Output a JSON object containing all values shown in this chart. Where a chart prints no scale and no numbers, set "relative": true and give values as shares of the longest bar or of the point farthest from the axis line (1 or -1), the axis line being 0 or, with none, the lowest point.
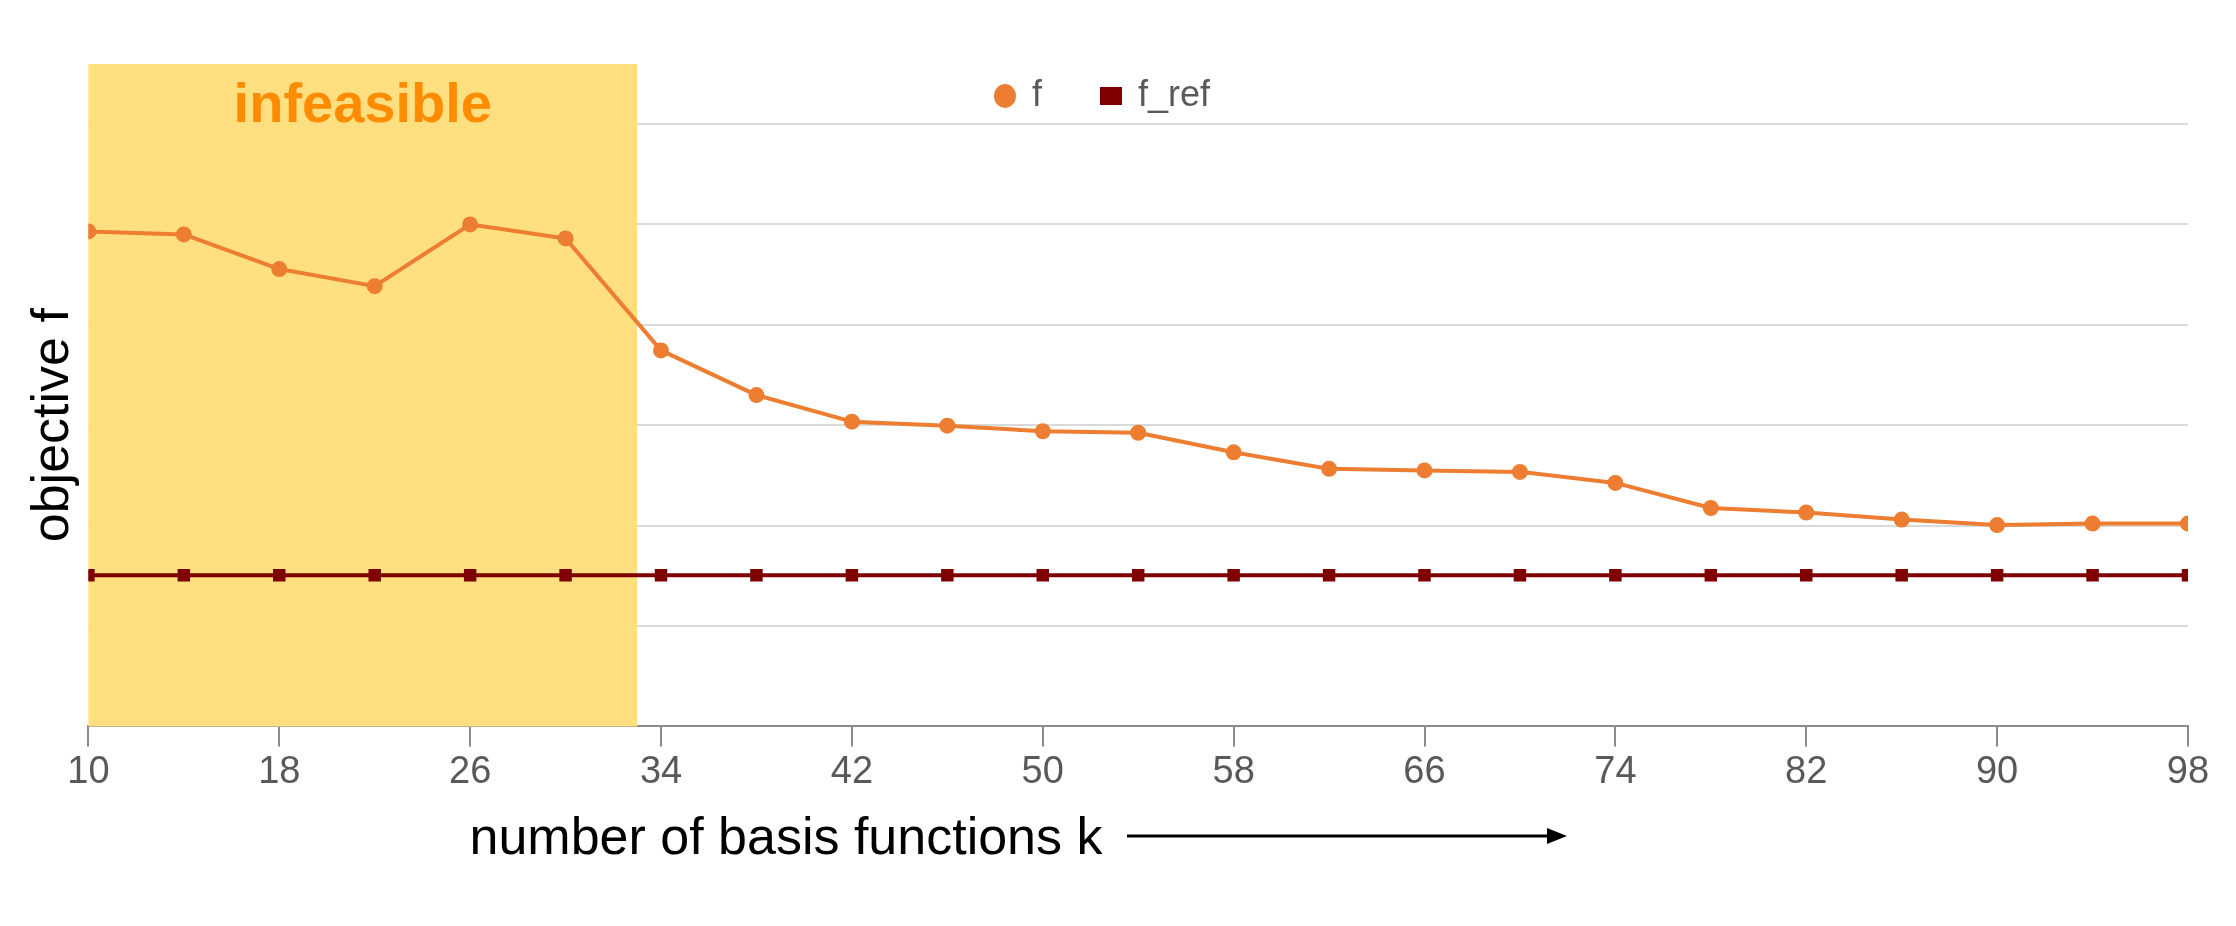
{
  "chart_data": {
    "type": "line",
    "xlabel": "number of basis functions k",
    "ylabel": "objective f",
    "relative": true,
    "x": [
      10,
      14,
      18,
      22,
      26,
      30,
      34,
      38,
      42,
      46,
      50,
      54,
      58,
      62,
      66,
      70,
      74,
      78,
      82,
      86,
      90,
      94,
      98
    ],
    "xlim": [
      10,
      98
    ],
    "xticks": [
      10,
      18,
      26,
      34,
      42,
      50,
      58,
      66,
      74,
      82,
      90,
      98
    ],
    "series": [
      {
        "name": "f",
        "color": "#ed7d31",
        "marker": "circle",
        "values": [
          0.986,
          0.98,
          0.911,
          0.877,
          1,
          0.972,
          0.749,
          0.66,
          0.607,
          0.599,
          0.588,
          0.585,
          0.546,
          0.513,
          0.51,
          0.507,
          0.485,
          0.435,
          0.426,
          0.412,
          0.401,
          0.404,
          0.404
        ]
      },
      {
        "name": "f_ref",
        "color": "#7f0000",
        "marker": "square",
        "values": [
          0.301,
          0.301,
          0.301,
          0.301,
          0.301,
          0.301,
          0.301,
          0.301,
          0.301,
          0.301,
          0.301,
          0.301,
          0.301,
          0.301,
          0.301,
          0.301,
          0.301,
          0.301,
          0.301,
          0.301,
          0.301,
          0.301,
          0.301
        ]
      }
    ],
    "bands": [
      {
        "axis": "x",
        "from": 10,
        "to": 33,
        "label": "infeasible",
        "color": "#ffdf80"
      }
    ],
    "grid": "y",
    "legend": "top"
  }
}
